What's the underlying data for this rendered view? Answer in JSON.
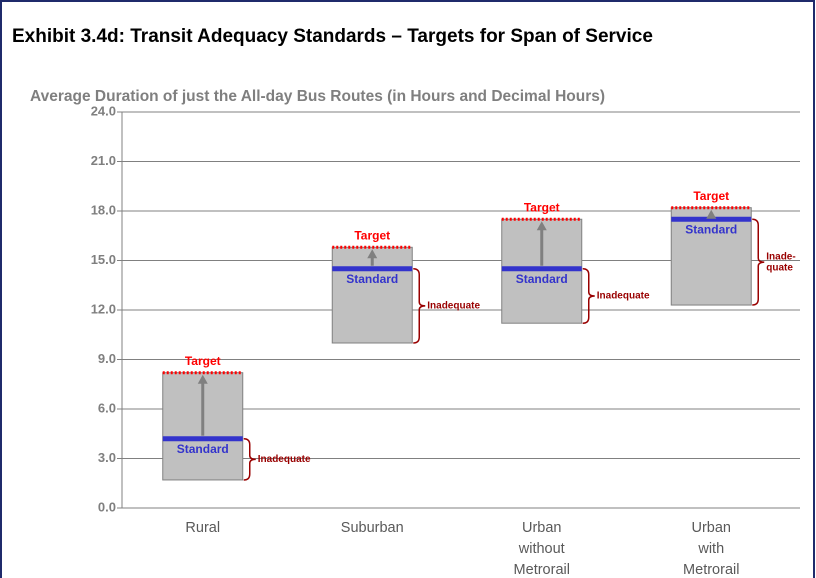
{
  "chart_data": {
    "type": "range",
    "title": "Exhibit 3.4d: Transit Adequacy Standards – Targets for Span of Service",
    "subtitle": "Average Duration of just the All-day Bus Routes (in Hours and Decimal Hours)",
    "categories": [
      [
        "Rural"
      ],
      [
        "Suburban"
      ],
      [
        "Urban",
        "without",
        "Metrorail"
      ],
      [
        "Urban",
        "with",
        "Metrorail"
      ]
    ],
    "low": [
      1.7,
      10.0,
      11.2,
      12.3
    ],
    "series": [
      {
        "name": "Target",
        "color": "#ff0000",
        "values": [
          8.2,
          15.8,
          17.5,
          18.2
        ]
      },
      {
        "name": "Standard",
        "color": "#3333cc",
        "values": [
          4.2,
          14.5,
          14.5,
          17.5
        ]
      }
    ],
    "annotations": [
      [
        "Inadequate"
      ],
      [
        "Inadequate"
      ],
      [
        "Inadequate"
      ],
      [
        "Inade-",
        "quate"
      ]
    ],
    "ylim": [
      0,
      24
    ],
    "yticks": [
      {
        "value": 0,
        "label": "0.0"
      },
      {
        "value": 3,
        "label": "3.0"
      },
      {
        "value": 6,
        "label": "6.0"
      },
      {
        "value": 9,
        "label": "9.0"
      },
      {
        "value": 12,
        "label": "12.0"
      },
      {
        "value": 15,
        "label": "15.0"
      },
      {
        "value": 18,
        "label": "18.0"
      },
      {
        "value": 21,
        "label": "21.0"
      },
      {
        "value": 24,
        "label": "24.0"
      }
    ],
    "grid": true
  }
}
